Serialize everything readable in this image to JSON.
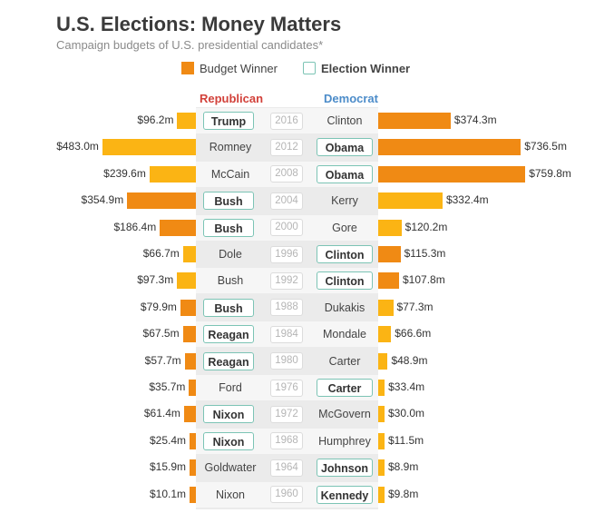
{
  "header": {
    "title": "U.S. Elections: Money Matters",
    "subtitle": "Campaign budgets of U.S. presidential candidates*"
  },
  "legend": {
    "budget_winner": "Budget Winner",
    "election_winner": "Election Winner"
  },
  "columns": {
    "republican": "Republican",
    "democrat": "Democrat"
  },
  "colors": {
    "budget_winner": "#f08a14",
    "other": "#fbb414",
    "election_winner_border": "#7cc4b5",
    "republican": "#d2413a",
    "democrat": "#4c8cc9"
  },
  "chart_data": {
    "type": "bar",
    "title": "U.S. Elections: Money Matters",
    "subtitle": "Campaign budgets of U.S. presidential candidates*",
    "unit": "$M",
    "legend_placement": "top",
    "rows": [
      {
        "year": "2016",
        "rep": {
          "name": "Trump",
          "budget": 96.2,
          "label": "$96.2m"
        },
        "dem": {
          "name": "Clinton",
          "budget": 374.3,
          "label": "$374.3m"
        },
        "winner": "rep",
        "budget_winner": "dem"
      },
      {
        "year": "2012",
        "rep": {
          "name": "Romney",
          "budget": 483.0,
          "label": "$483.0m"
        },
        "dem": {
          "name": "Obama",
          "budget": 736.5,
          "label": "$736.5m"
        },
        "winner": "dem",
        "budget_winner": "dem"
      },
      {
        "year": "2008",
        "rep": {
          "name": "McCain",
          "budget": 239.6,
          "label": "$239.6m"
        },
        "dem": {
          "name": "Obama",
          "budget": 759.8,
          "label": "$759.8m"
        },
        "winner": "dem",
        "budget_winner": "dem"
      },
      {
        "year": "2004",
        "rep": {
          "name": "Bush",
          "budget": 354.9,
          "label": "$354.9m"
        },
        "dem": {
          "name": "Kerry",
          "budget": 332.4,
          "label": "$332.4m"
        },
        "winner": "rep",
        "budget_winner": "rep"
      },
      {
        "year": "2000",
        "rep": {
          "name": "Bush",
          "budget": 186.4,
          "label": "$186.4m"
        },
        "dem": {
          "name": "Gore",
          "budget": 120.2,
          "label": "$120.2m"
        },
        "winner": "rep",
        "budget_winner": "rep"
      },
      {
        "year": "1996",
        "rep": {
          "name": "Dole",
          "budget": 66.7,
          "label": "$66.7m"
        },
        "dem": {
          "name": "Clinton",
          "budget": 115.3,
          "label": "$115.3m"
        },
        "winner": "dem",
        "budget_winner": "dem"
      },
      {
        "year": "1992",
        "rep": {
          "name": "Bush",
          "budget": 97.3,
          "label": "$97.3m"
        },
        "dem": {
          "name": "Clinton",
          "budget": 107.8,
          "label": "$107.8m"
        },
        "winner": "dem",
        "budget_winner": "dem"
      },
      {
        "year": "1988",
        "rep": {
          "name": "Bush",
          "budget": 79.9,
          "label": "$79.9m"
        },
        "dem": {
          "name": "Dukakis",
          "budget": 77.3,
          "label": "$77.3m"
        },
        "winner": "rep",
        "budget_winner": "rep"
      },
      {
        "year": "1984",
        "rep": {
          "name": "Reagan",
          "budget": 67.5,
          "label": "$67.5m"
        },
        "dem": {
          "name": "Mondale",
          "budget": 66.6,
          "label": "$66.6m"
        },
        "winner": "rep",
        "budget_winner": "rep"
      },
      {
        "year": "1980",
        "rep": {
          "name": "Reagan",
          "budget": 57.7,
          "label": "$57.7m"
        },
        "dem": {
          "name": "Carter",
          "budget": 48.9,
          "label": "$48.9m"
        },
        "winner": "rep",
        "budget_winner": "rep"
      },
      {
        "year": "1976",
        "rep": {
          "name": "Ford",
          "budget": 35.7,
          "label": "$35.7m"
        },
        "dem": {
          "name": "Carter",
          "budget": 33.4,
          "label": "$33.4m"
        },
        "winner": "dem",
        "budget_winner": "rep"
      },
      {
        "year": "1972",
        "rep": {
          "name": "Nixon",
          "budget": 61.4,
          "label": "$61.4m"
        },
        "dem": {
          "name": "McGovern",
          "budget": 30.0,
          "label": "$30.0m"
        },
        "winner": "rep",
        "budget_winner": "rep"
      },
      {
        "year": "1968",
        "rep": {
          "name": "Nixon",
          "budget": 25.4,
          "label": "$25.4m"
        },
        "dem": {
          "name": "Humphrey",
          "budget": 11.5,
          "label": "$11.5m"
        },
        "winner": "rep",
        "budget_winner": "rep"
      },
      {
        "year": "1964",
        "rep": {
          "name": "Goldwater",
          "budget": 15.9,
          "label": "$15.9m"
        },
        "dem": {
          "name": "Johnson",
          "budget": 8.9,
          "label": "$8.9m"
        },
        "winner": "dem",
        "budget_winner": "rep"
      },
      {
        "year": "1960",
        "rep": {
          "name": "Nixon",
          "budget": 10.1,
          "label": "$10.1m"
        },
        "dem": {
          "name": "Kennedy",
          "budget": 9.8,
          "label": "$9.8m"
        },
        "winner": "dem",
        "budget_winner": "rep"
      }
    ]
  }
}
